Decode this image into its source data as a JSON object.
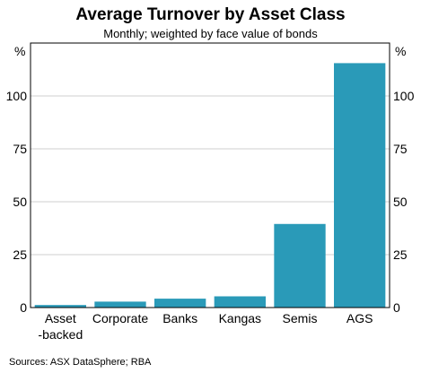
{
  "chart_data": {
    "type": "bar",
    "title": "Average Turnover by Asset Class",
    "subtitle": "Monthly; weighted by face value of bonds",
    "ylabel_left": "%",
    "ylabel_right": "%",
    "categories": [
      [
        "Asset",
        "-backed"
      ],
      [
        "Corporate"
      ],
      [
        "Banks"
      ],
      [
        "Kangas"
      ],
      [
        "Semis"
      ],
      [
        "AGS"
      ]
    ],
    "values": [
      1.2,
      2.8,
      4.2,
      5.3,
      39.5,
      115.5
    ],
    "ylim": [
      0,
      125
    ],
    "yticks": [
      0,
      25,
      50,
      75,
      100
    ],
    "grid": true,
    "bar_color": "#2a9ab8",
    "source": "Sources: ASX DataSphere; RBA"
  }
}
